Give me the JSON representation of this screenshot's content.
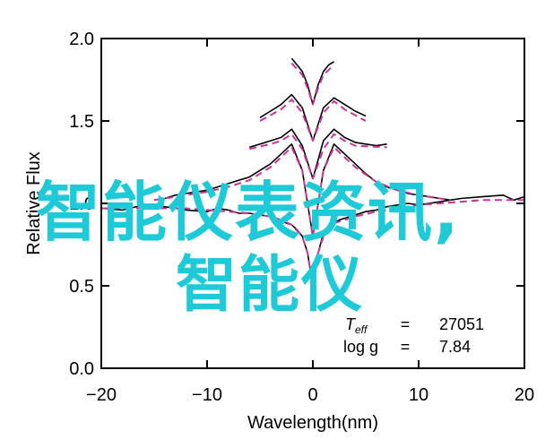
{
  "chart_data": {
    "type": "line",
    "title": "",
    "xlabel": "Wavelength(nm)",
    "ylabel": "Relative Flux",
    "xlim": [
      -20,
      20
    ],
    "ylim": [
      0.0,
      2.0
    ],
    "xticks": [
      -20,
      -10,
      0,
      10,
      20
    ],
    "yticks": [
      0.0,
      0.5,
      1.0,
      1.5,
      2.0
    ],
    "xtick_labels": [
      "−20",
      "−10",
      "0",
      "10",
      "20"
    ],
    "ytick_labels": [
      "0.0",
      "0.5",
      "1.0",
      "1.5",
      "2.0"
    ],
    "grid": false,
    "legend": "none",
    "annotations": {
      "teff_label": "T",
      "teff_sub": "eff",
      "teff_eq": "=",
      "teff_value": "27051",
      "logg_label": "log g",
      "logg_eq": "=",
      "logg_value": "7.84"
    },
    "series": [
      {
        "color": "#000000",
        "segments": [
          {
            "x": [
              -20,
              -18,
              -16,
              -14,
              -12,
              -10,
              -9,
              -8,
              -7,
              -6,
              -5,
              -4,
              -3,
              -2.5,
              -2,
              -1.5,
              -1,
              -0.5,
              0,
              0.5,
              1,
              1.5,
              2,
              2.5,
              3,
              4,
              5,
              6,
              7,
              8,
              9,
              10,
              12,
              14,
              16,
              18,
              19,
              20
            ],
            "y": [
              0.97,
              0.96,
              0.99,
              0.98,
              0.96,
              0.95,
              0.97,
              0.96,
              0.94,
              0.94,
              0.93,
              0.92,
              0.9,
              0.88,
              0.87,
              0.84,
              0.8,
              0.7,
              0.5,
              0.7,
              0.82,
              0.86,
              0.88,
              0.9,
              0.91,
              0.93,
              0.95,
              0.96,
              0.98,
              0.99,
              1.0,
              0.99,
              1.01,
              1.03,
              1.04,
              1.05,
              1.02,
              1.04
            ]
          },
          {
            "x": [
              -15,
              -14,
              -13,
              -12,
              -11,
              -10,
              -9,
              -8,
              -7,
              -6,
              -5,
              -4,
              -3,
              -2,
              -1,
              0,
              1,
              2,
              3,
              4,
              5,
              6,
              7,
              8,
              9,
              10,
              11,
              12,
              13
            ],
            "y": [
              1.02,
              1.03,
              1.05,
              1.06,
              1.07,
              1.08,
              1.1,
              1.12,
              1.14,
              1.16,
              1.2,
              1.24,
              1.3,
              1.36,
              1.2,
              0.8,
              1.2,
              1.36,
              1.3,
              1.24,
              1.18,
              1.13,
              1.1,
              1.08,
              1.06,
              1.05,
              1.04,
              1.03,
              1.02
            ]
          },
          {
            "x": [
              -6,
              -5,
              -4,
              -3,
              -2,
              -1,
              0,
              1,
              2,
              3,
              4,
              5,
              6,
              7
            ],
            "y": [
              1.34,
              1.36,
              1.38,
              1.4,
              1.45,
              1.35,
              1.15,
              1.38,
              1.45,
              1.4,
              1.37,
              1.36,
              1.35,
              1.36
            ]
          },
          {
            "x": [
              -5,
              -4,
              -3,
              -2,
              -1,
              0,
              1,
              2,
              3,
              4,
              5
            ],
            "y": [
              1.52,
              1.56,
              1.6,
              1.66,
              1.58,
              1.38,
              1.58,
              1.64,
              1.6,
              1.56,
              1.53
            ]
          },
          {
            "x": [
              -2,
              -1.5,
              -1,
              -0.5,
              0,
              0.5,
              1,
              1.5,
              2
            ],
            "y": [
              1.88,
              1.84,
              1.8,
              1.72,
              1.6,
              1.72,
              1.8,
              1.84,
              1.86
            ]
          }
        ]
      },
      {
        "color": "#cc3399",
        "dashed": true,
        "segments": [
          {
            "x": [
              -20,
              -16,
              -12,
              -10,
              -8,
              -6,
              -4,
              -3,
              -2,
              -1,
              -0.5,
              0,
              0.5,
              1,
              2,
              3,
              4,
              6,
              8,
              10,
              12,
              16,
              20
            ],
            "y": [
              0.97,
              0.97,
              0.97,
              0.96,
              0.95,
              0.94,
              0.92,
              0.9,
              0.87,
              0.8,
              0.7,
              0.5,
              0.7,
              0.8,
              0.88,
              0.9,
              0.92,
              0.95,
              0.97,
              0.99,
              1.0,
              1.02,
              1.02
            ]
          },
          {
            "x": [
              -15,
              -12,
              -10,
              -8,
              -6,
              -4,
              -3,
              -2,
              -1,
              0,
              1,
              2,
              3,
              4,
              6,
              8,
              10,
              13
            ],
            "y": [
              1.02,
              1.05,
              1.07,
              1.1,
              1.14,
              1.22,
              1.28,
              1.34,
              1.2,
              0.8,
              1.2,
              1.34,
              1.28,
              1.22,
              1.13,
              1.08,
              1.05,
              1.02
            ]
          },
          {
            "x": [
              -6,
              -4,
              -3,
              -2,
              -1,
              0,
              1,
              2,
              3,
              4,
              7
            ],
            "y": [
              1.33,
              1.36,
              1.38,
              1.42,
              1.33,
              1.15,
              1.33,
              1.42,
              1.38,
              1.35,
              1.34
            ]
          },
          {
            "x": [
              -5,
              -3,
              -2,
              -1,
              0,
              1,
              2,
              3,
              5
            ],
            "y": [
              1.5,
              1.57,
              1.63,
              1.55,
              1.38,
              1.55,
              1.62,
              1.57,
              1.5
            ]
          },
          {
            "x": [
              -2,
              -1,
              -0.5,
              0,
              0.5,
              1,
              2
            ],
            "y": [
              1.85,
              1.78,
              1.7,
              1.6,
              1.7,
              1.78,
              1.84
            ]
          }
        ]
      }
    ]
  },
  "overlay": {
    "line1": "智能仪表资讯,",
    "line2": "智能仪",
    "color": "#1ec9d8"
  }
}
